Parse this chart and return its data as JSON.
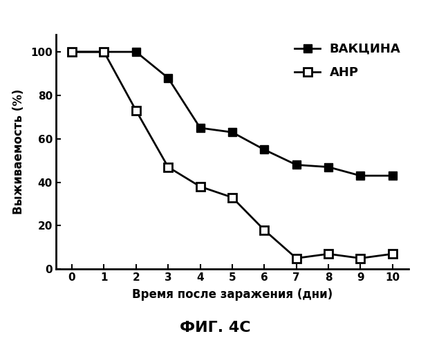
{
  "vaccine_x": [
    0,
    1,
    2,
    3,
    4,
    5,
    6,
    7,
    8,
    9,
    10
  ],
  "vaccine_y": [
    100,
    100,
    100,
    88,
    65,
    63,
    55,
    48,
    47,
    43,
    43
  ],
  "anp_x": [
    0,
    1,
    2,
    3,
    4,
    5,
    6,
    7,
    8,
    9,
    10
  ],
  "anp_y": [
    100,
    100,
    73,
    47,
    38,
    33,
    18,
    5,
    7,
    5,
    7
  ],
  "xlabel": "Время после заражения (дни)",
  "ylabel": "Выживаемость (%)",
  "xlim": [
    -0.5,
    10.5
  ],
  "ylim": [
    0,
    108
  ],
  "yticks": [
    0,
    20,
    40,
    60,
    80,
    100
  ],
  "xticks": [
    0,
    1,
    2,
    3,
    4,
    5,
    6,
    7,
    8,
    9,
    10
  ],
  "legend_vaccine": "ВАКЦИНА",
  "legend_anp": "АНР",
  "caption": "ФИГ. 4С",
  "bg_color": "#ffffff",
  "line_color": "#000000",
  "marker_size": 9,
  "linewidth": 2.0
}
